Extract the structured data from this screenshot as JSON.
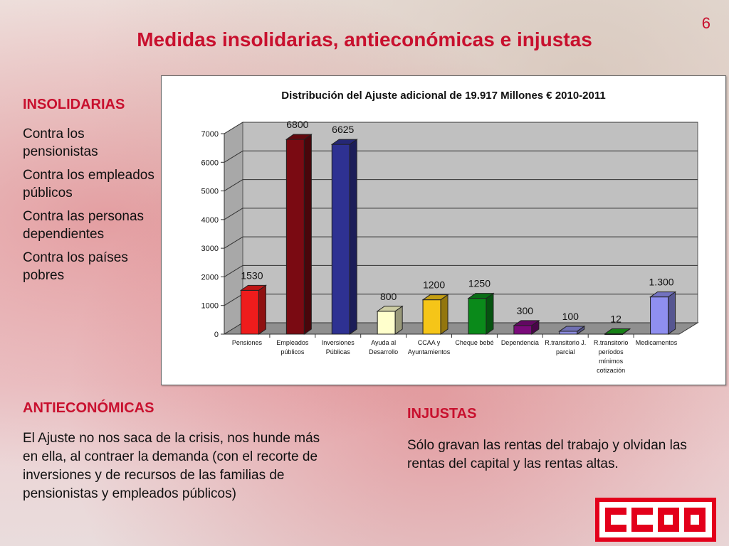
{
  "slide": {
    "page_number": "6",
    "title": "Medidas insolidarias, antieconómicas e injustas"
  },
  "insolidarias": {
    "heading": "INSOLIDARIAS",
    "items": [
      "Contra los pensionistas",
      "Contra los empleados públicos",
      "Contra las personas dependientes",
      "Contra los países pobres"
    ]
  },
  "antieconomicas": {
    "heading": "ANTIECONÓMICAS",
    "text": "El Ajuste no nos saca de la crisis, nos hunde más en ella, al contraer la demanda (con el recorte de inversiones y de recursos de las familias de pensionistas y empleados públicos)"
  },
  "injustas": {
    "heading": "INJUSTAS",
    "text": "Sólo gravan las rentas del trabajo y olvidan las rentas del capital y las rentas altas."
  },
  "logo": {
    "text": "CCOO",
    "color": "#e3001b"
  },
  "chart_data": {
    "type": "bar",
    "title": "Distribución del Ajuste adicional de 19.917 Millones € 2010-2011",
    "xlabel": "",
    "ylabel": "",
    "ylim": [
      0,
      7000
    ],
    "yticks": [
      0,
      1000,
      2000,
      3000,
      4000,
      5000,
      6000,
      7000
    ],
    "grid": true,
    "legend": "none",
    "categories": [
      [
        "Pensiones"
      ],
      [
        "Empleados",
        "públicos"
      ],
      [
        "Inversiones",
        "Públicas"
      ],
      [
        "Ayuda al",
        "Desarrollo"
      ],
      [
        "CCAA y",
        "Ayuntamientos"
      ],
      [
        "Cheque bebé"
      ],
      [
        "Dependencia"
      ],
      [
        "R.transitorio J.",
        "parcial"
      ],
      [
        "R.transitorio",
        "períodos",
        "mínimos",
        "cotización"
      ],
      [
        "Medicamentos"
      ]
    ],
    "values": [
      1530,
      6800,
      6625,
      800,
      1200,
      1250,
      300,
      100,
      12,
      1300
    ],
    "data_labels": [
      "1530",
      "6800",
      "6625",
      "800",
      "1200",
      "1250",
      "300",
      "100",
      "12",
      "1.300"
    ],
    "colors": [
      "#ee1c1c",
      "#7a0a12",
      "#2e3192",
      "#ffffcc",
      "#f5c518",
      "#0a8a1a",
      "#7a0a7a",
      "#8c8ce0",
      "#1aa01a",
      "#8f8ff0"
    ]
  }
}
